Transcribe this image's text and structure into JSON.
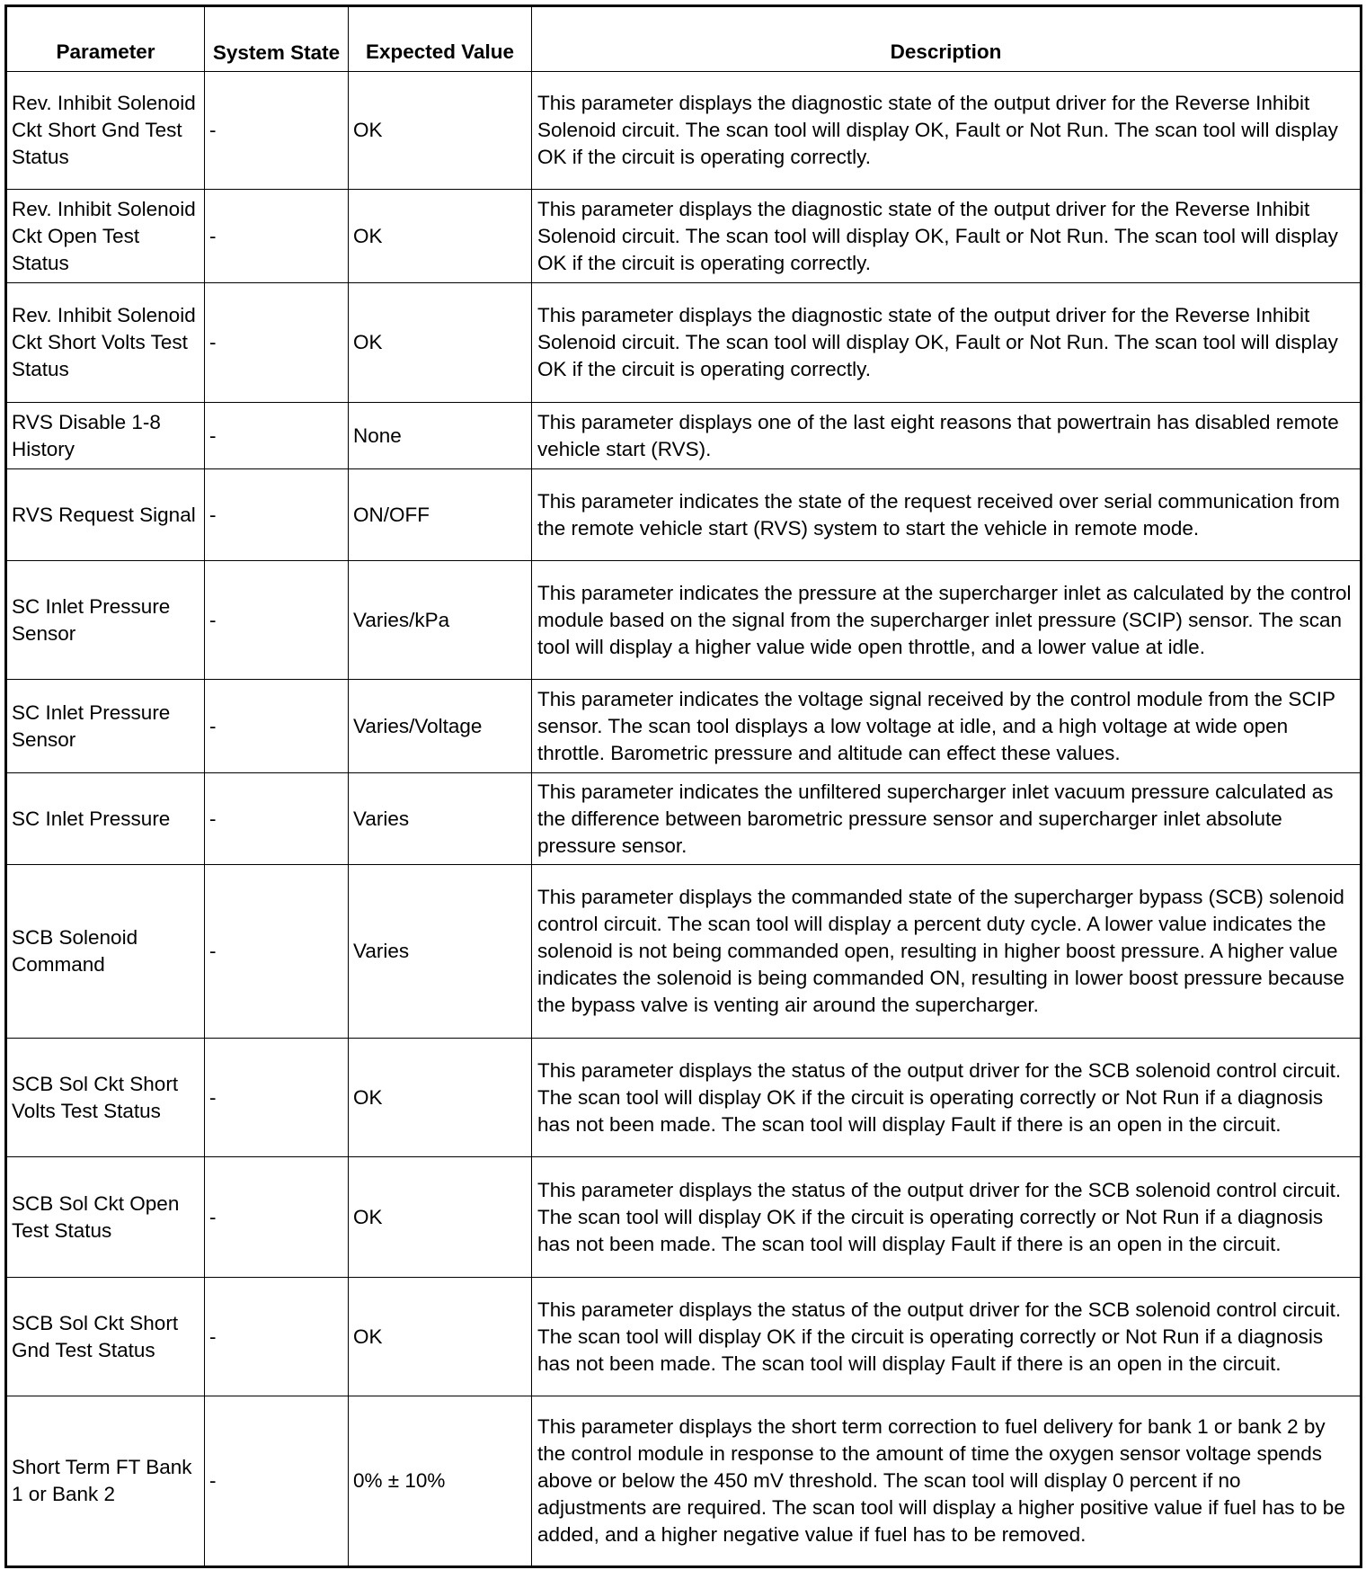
{
  "headers": [
    "Parameter",
    "System State",
    "Expected Value",
    "Description"
  ],
  "rows": [
    {
      "parameter": "Rev. Inhibit Solenoid Ckt Short Gnd Test Status",
      "state": "-",
      "expected": "OK",
      "description": "This parameter displays the diagnostic state of the output driver for the Reverse Inhibit Solenoid circuit. The scan tool will display OK, Fault or Not Run. The scan tool will display OK if the circuit is operating correctly."
    },
    {
      "parameter": "Rev. Inhibit Solenoid Ckt Open Test Status",
      "state": "-",
      "expected": "OK",
      "description": "This parameter displays the diagnostic state of the output driver for the Reverse Inhibit Solenoid circuit. The scan tool will display OK, Fault or Not Run. The scan tool will display OK if the circuit is operating correctly."
    },
    {
      "parameter": "Rev. Inhibit Solenoid Ckt Short Volts Test Status",
      "state": "-",
      "expected": "OK",
      "description": "This parameter displays the diagnostic state of the output driver for the Reverse Inhibit Solenoid circuit. The scan tool will display OK, Fault or Not Run. The scan tool will display OK if the circuit is operating correctly."
    },
    {
      "parameter": "RVS Disable 1-8 History",
      "state": "-",
      "expected": "None",
      "description": "This parameter displays one of the last eight reasons that powertrain has disabled remote vehicle start (RVS)."
    },
    {
      "parameter": "RVS Request Signal",
      "state": "-",
      "expected": "ON/OFF",
      "description": "This parameter indicates the state of the request received over serial communication from the remote vehicle start (RVS) system to start the vehicle in remote mode."
    },
    {
      "parameter": "SC Inlet Pressure Sensor",
      "state": "-",
      "expected": "Varies/kPa",
      "description": "This parameter indicates the pressure at the supercharger inlet as calculated by the control module based on the signal from the supercharger inlet pressure (SCIP) sensor. The scan tool will display a higher value wide open throttle, and a lower value at idle."
    },
    {
      "parameter": "SC Inlet Pressure Sensor",
      "state": "-",
      "expected": "Varies/Voltage",
      "description": "This parameter indicates the voltage signal received by the control module from the SCIP sensor. The scan tool displays a low voltage at idle, and a high voltage at wide open throttle. Barometric pressure and altitude can effect these values."
    },
    {
      "parameter": "SC Inlet Pressure",
      "state": "-",
      "expected": "Varies",
      "description": "This parameter indicates the unfiltered supercharger inlet vacuum pressure calculated as the difference between barometric pressure sensor and supercharger inlet absolute pressure sensor."
    },
    {
      "parameter": "SCB Solenoid Command",
      "state": "-",
      "expected": "Varies",
      "description": "This parameter displays the commanded state of the supercharger bypass (SCB) solenoid control circuit. The scan tool will display a percent duty cycle. A lower value indicates the solenoid is not being commanded open, resulting in higher boost pressure. A higher value indicates the solenoid is being commanded ON, resulting in lower boost pressure because the bypass valve is venting air around the supercharger."
    },
    {
      "parameter": "SCB Sol Ckt Short Volts Test Status",
      "state": "-",
      "expected": "OK",
      "description": "This parameter displays the status of the output driver for the SCB solenoid control circuit. The scan tool will display OK if the circuit is operating correctly or Not Run if a diagnosis has not been made. The scan tool will display Fault if there is an open in the circuit."
    },
    {
      "parameter": "SCB Sol Ckt Open Test Status",
      "state": "-",
      "expected": "OK",
      "description": "This parameter displays the status of the output driver for the SCB solenoid control circuit. The scan tool will display OK if the circuit is operating correctly or Not Run if a diagnosis has not been made. The scan tool will display Fault if there is an open in the circuit."
    },
    {
      "parameter": "SCB Sol Ckt Short Gnd Test Status",
      "state": "-",
      "expected": "OK",
      "description": "This parameter displays the status of the output driver for the SCB solenoid control circuit. The scan tool will display OK if the circuit is operating correctly or Not Run if a diagnosis has not been made. The scan tool will display Fault if there is an open in the circuit."
    },
    {
      "parameter": "Short Term FT Bank 1 or Bank 2",
      "state": "-",
      "expected": "0% ± 10%",
      "description": "This parameter displays the short term correction to fuel delivery for bank 1 or bank 2 by the control module in response to the amount of time the oxygen sensor voltage spends above or below the 450 mV threshold. The scan tool will display 0 percent if no adjustments are required. The scan tool will display a higher positive value if fuel has to be added, and a higher negative value if fuel has to be removed."
    }
  ]
}
